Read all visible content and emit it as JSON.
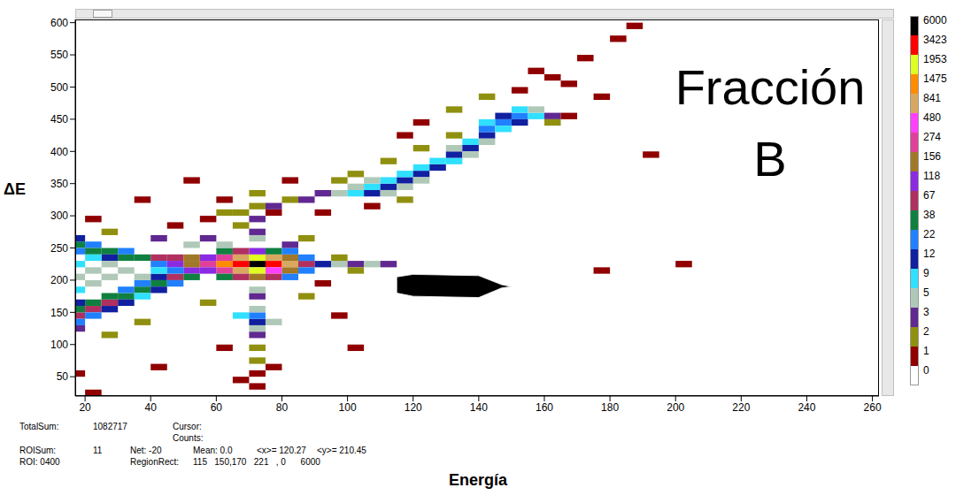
{
  "chart_data": {
    "type": "heatmap",
    "annotation": "Fracción B",
    "x_label": "Energía",
    "y_label": "ΔE",
    "xlim": [
      17,
      262
    ],
    "xticks": [
      20,
      40,
      60,
      80,
      100,
      120,
      140,
      160,
      180,
      200,
      220,
      240,
      260
    ],
    "ylim": [
      20,
      605
    ],
    "yticks": [
      50,
      100,
      150,
      200,
      250,
      300,
      350,
      400,
      450,
      500,
      550,
      600
    ],
    "grid": false,
    "cell_width": 5,
    "cell_height": 10,
    "cells": [
      [
        72.5,
        225,
        6000
      ],
      [
        67.5,
        225,
        3423
      ],
      [
        77.5,
        225,
        3423
      ],
      [
        62.5,
        225,
        1475
      ],
      [
        82.5,
        225,
        841
      ],
      [
        72.5,
        235,
        1953
      ],
      [
        72.5,
        215,
        1953
      ],
      [
        67.5,
        235,
        841
      ],
      [
        77.5,
        235,
        841
      ],
      [
        67.5,
        215,
        841
      ],
      [
        77.5,
        215,
        480
      ],
      [
        62.5,
        235,
        274
      ],
      [
        62.5,
        215,
        274
      ],
      [
        82.5,
        235,
        156
      ],
      [
        82.5,
        215,
        156
      ],
      [
        57.5,
        225,
        274
      ],
      [
        87.5,
        225,
        67
      ],
      [
        72.5,
        245,
        118
      ],
      [
        72.5,
        205,
        156
      ],
      [
        67.5,
        205,
        67
      ],
      [
        77.5,
        205,
        67
      ],
      [
        67.5,
        245,
        67
      ],
      [
        77.5,
        245,
        38
      ],
      [
        57.5,
        235,
        118
      ],
      [
        57.5,
        215,
        118
      ],
      [
        87.5,
        215,
        22
      ],
      [
        87.5,
        235,
        22
      ],
      [
        62.5,
        245,
        38
      ],
      [
        82.5,
        245,
        22
      ],
      [
        62.5,
        205,
        38
      ],
      [
        82.5,
        205,
        22
      ],
      [
        92.5,
        225,
        12
      ],
      [
        17.5,
        145,
        67
      ],
      [
        17.5,
        155,
        38
      ],
      [
        17.5,
        135,
        22
      ],
      [
        17.5,
        165,
        12
      ],
      [
        22.5,
        155,
        67
      ],
      [
        22.5,
        165,
        38
      ],
      [
        22.5,
        145,
        22
      ],
      [
        27.5,
        165,
        67
      ],
      [
        27.5,
        175,
        38
      ],
      [
        27.5,
        155,
        12
      ],
      [
        32.5,
        175,
        38
      ],
      [
        32.5,
        185,
        22
      ],
      [
        32.5,
        165,
        12
      ],
      [
        37.5,
        185,
        38
      ],
      [
        37.5,
        195,
        22
      ],
      [
        37.5,
        175,
        9
      ],
      [
        42.5,
        195,
        38
      ],
      [
        42.5,
        185,
        12
      ],
      [
        42.5,
        205,
        12
      ],
      [
        47.5,
        205,
        67
      ],
      [
        47.5,
        195,
        22
      ],
      [
        52.5,
        215,
        118
      ],
      [
        52.5,
        205,
        38
      ],
      [
        17.5,
        255,
        38
      ],
      [
        17.5,
        265,
        12
      ],
      [
        17.5,
        245,
        22
      ],
      [
        22.5,
        255,
        22
      ],
      [
        22.5,
        245,
        38
      ],
      [
        27.5,
        245,
        38
      ],
      [
        27.5,
        235,
        12
      ],
      [
        32.5,
        245,
        22
      ],
      [
        32.5,
        235,
        38
      ],
      [
        37.5,
        235,
        38
      ],
      [
        42.5,
        235,
        67
      ],
      [
        42.5,
        225,
        22
      ],
      [
        47.5,
        235,
        67
      ],
      [
        47.5,
        225,
        118
      ],
      [
        52.5,
        225,
        156
      ],
      [
        52.5,
        235,
        156
      ],
      [
        17.5,
        185,
        9
      ],
      [
        17.5,
        205,
        5
      ],
      [
        17.5,
        225,
        9
      ],
      [
        22.5,
        195,
        5
      ],
      [
        22.5,
        215,
        5
      ],
      [
        22.5,
        235,
        9
      ],
      [
        27.5,
        205,
        5
      ],
      [
        27.5,
        225,
        5
      ],
      [
        32.5,
        215,
        5
      ],
      [
        37.5,
        205,
        5
      ],
      [
        42.5,
        215,
        9
      ],
      [
        47.5,
        215,
        22
      ],
      [
        17.5,
        125,
        3
      ],
      [
        97.5,
        225,
        5
      ],
      [
        102.5,
        225,
        3
      ],
      [
        107.5,
        225,
        5
      ],
      [
        112.5,
        225,
        3
      ],
      [
        97.5,
        235,
        2
      ],
      [
        102.5,
        215,
        2
      ],
      [
        72.5,
        35,
        1
      ],
      [
        72.5,
        55,
        1
      ],
      [
        72.5,
        75,
        2
      ],
      [
        72.5,
        95,
        2
      ],
      [
        72.5,
        115,
        3
      ],
      [
        72.5,
        125,
        5
      ],
      [
        72.5,
        135,
        12
      ],
      [
        67.5,
        145,
        9
      ],
      [
        77.5,
        135,
        5
      ],
      [
        72.5,
        145,
        22
      ],
      [
        72.5,
        155,
        5
      ],
      [
        72.5,
        175,
        3
      ],
      [
        72.5,
        185,
        5
      ],
      [
        72.5,
        265,
        5
      ],
      [
        72.5,
        275,
        3
      ],
      [
        72.5,
        295,
        3
      ],
      [
        72.5,
        315,
        2
      ],
      [
        72.5,
        335,
        2
      ],
      [
        67.5,
        285,
        2
      ],
      [
        77.5,
        305,
        1
      ],
      [
        67.5,
        45,
        1
      ],
      [
        77.5,
        65,
        1
      ],
      [
        57.5,
        295,
        1
      ],
      [
        62.5,
        305,
        2
      ],
      [
        67.5,
        305,
        2
      ],
      [
        77.5,
        315,
        3
      ],
      [
        82.5,
        325,
        2
      ],
      [
        87.5,
        325,
        3
      ],
      [
        92.5,
        335,
        3
      ],
      [
        97.5,
        335,
        5
      ],
      [
        62.5,
        325,
        1
      ],
      [
        52.5,
        355,
        1
      ],
      [
        82.5,
        355,
        1
      ],
      [
        92.5,
        305,
        1
      ],
      [
        102.5,
        335,
        9
      ],
      [
        102.5,
        345,
        5
      ],
      [
        107.5,
        335,
        12
      ],
      [
        107.5,
        345,
        9
      ],
      [
        107.5,
        355,
        5
      ],
      [
        112.5,
        345,
        12
      ],
      [
        112.5,
        355,
        9
      ],
      [
        112.5,
        335,
        5
      ],
      [
        117.5,
        355,
        12
      ],
      [
        117.5,
        365,
        9
      ],
      [
        117.5,
        345,
        5
      ],
      [
        122.5,
        365,
        12
      ],
      [
        122.5,
        375,
        9
      ],
      [
        122.5,
        355,
        5
      ],
      [
        127.5,
        375,
        12
      ],
      [
        127.5,
        385,
        9
      ],
      [
        132.5,
        385,
        9
      ],
      [
        132.5,
        395,
        12
      ],
      [
        132.5,
        405,
        5
      ],
      [
        137.5,
        405,
        12
      ],
      [
        137.5,
        415,
        9
      ],
      [
        137.5,
        395,
        5
      ],
      [
        142.5,
        425,
        12
      ],
      [
        142.5,
        435,
        22
      ],
      [
        142.5,
        415,
        5
      ],
      [
        142.5,
        445,
        9
      ],
      [
        147.5,
        445,
        22
      ],
      [
        147.5,
        455,
        12
      ],
      [
        147.5,
        435,
        9
      ],
      [
        152.5,
        455,
        22
      ],
      [
        152.5,
        445,
        12
      ],
      [
        152.5,
        465,
        9
      ],
      [
        157.5,
        455,
        9
      ],
      [
        157.5,
        465,
        5
      ],
      [
        162.5,
        455,
        3
      ],
      [
        162.5,
        445,
        2
      ],
      [
        167.5,
        455,
        1
      ],
      [
        112.5,
        385,
        2
      ],
      [
        122.5,
        405,
        2
      ],
      [
        132.5,
        425,
        2
      ],
      [
        102.5,
        365,
        2
      ],
      [
        97.5,
        355,
        2
      ],
      [
        142.5,
        485,
        2
      ],
      [
        152.5,
        495,
        1
      ],
      [
        162.5,
        515,
        1
      ],
      [
        172.5,
        545,
        1
      ],
      [
        182.5,
        575,
        1
      ],
      [
        187.5,
        595,
        1
      ],
      [
        157.5,
        525,
        1
      ],
      [
        167.5,
        505,
        1
      ],
      [
        132.5,
        465,
        2
      ],
      [
        122.5,
        445,
        1
      ],
      [
        117.5,
        425,
        1
      ],
      [
        177.5,
        485,
        1
      ],
      [
        107.5,
        315,
        1
      ],
      [
        117.5,
        325,
        2
      ],
      [
        22.5,
        295,
        1
      ],
      [
        37.5,
        325,
        1
      ],
      [
        47.5,
        285,
        1
      ],
      [
        27.5,
        275,
        2
      ],
      [
        42.5,
        265,
        3
      ],
      [
        57.5,
        265,
        3
      ],
      [
        62.5,
        255,
        5
      ],
      [
        52.5,
        255,
        5
      ],
      [
        82.5,
        255,
        3
      ],
      [
        87.5,
        265,
        2
      ],
      [
        27.5,
        115,
        2
      ],
      [
        37.5,
        135,
        2
      ],
      [
        57.5,
        165,
        2
      ],
      [
        87.5,
        175,
        2
      ],
      [
        92.5,
        195,
        1
      ],
      [
        42.5,
        65,
        1
      ],
      [
        102.5,
        95,
        1
      ],
      [
        62.5,
        95,
        1
      ],
      [
        17.5,
        55,
        1
      ],
      [
        22.5,
        25,
        1
      ],
      [
        97.5,
        145,
        1
      ],
      [
        192.5,
        395,
        1
      ],
      [
        202.5,
        225,
        1
      ],
      [
        177.5,
        215,
        1
      ]
    ],
    "roi": [
      [
        115,
        205
      ],
      [
        120,
        209
      ],
      [
        140,
        207
      ],
      [
        147,
        193
      ],
      [
        150,
        190
      ],
      [
        147,
        188
      ],
      [
        140,
        173
      ],
      [
        120,
        175
      ],
      [
        115,
        180
      ]
    ],
    "roi_color": "#000000",
    "colorbar": {
      "ticks": [
        6000,
        3423,
        1953,
        1475,
        841,
        480,
        274,
        156,
        118,
        67,
        38,
        22,
        12,
        9,
        5,
        3,
        2,
        1,
        0
      ],
      "colors": [
        "#000000",
        "#ff0000",
        "#e0ff20",
        "#ff8c00",
        "#d8a860",
        "#ff40ff",
        "#e0409a",
        "#a07828",
        "#8a2be2",
        "#b03060",
        "#108040",
        "#2080ff",
        "#1020a0",
        "#30e0ff",
        "#b0c8b8",
        "#602890",
        "#909010",
        "#900000",
        "#ffffff"
      ]
    },
    "status": {
      "total_sum_label": "TotalSum:",
      "total_sum": "1082717",
      "cursor": "Cursor:",
      "counts": "Counts:",
      "roi_sum_label": "ROISum:",
      "roi_sum": "11",
      "net": "Net: -20",
      "mean": "Mean: 0.0",
      "mean_x": "<x>= 120.27",
      "mean_y": "<y>= 210.45",
      "roi": "ROI: 0400",
      "region_rect_label": "RegionRect:",
      "region_rect": "115   150,170   221   , 0      6000"
    }
  }
}
